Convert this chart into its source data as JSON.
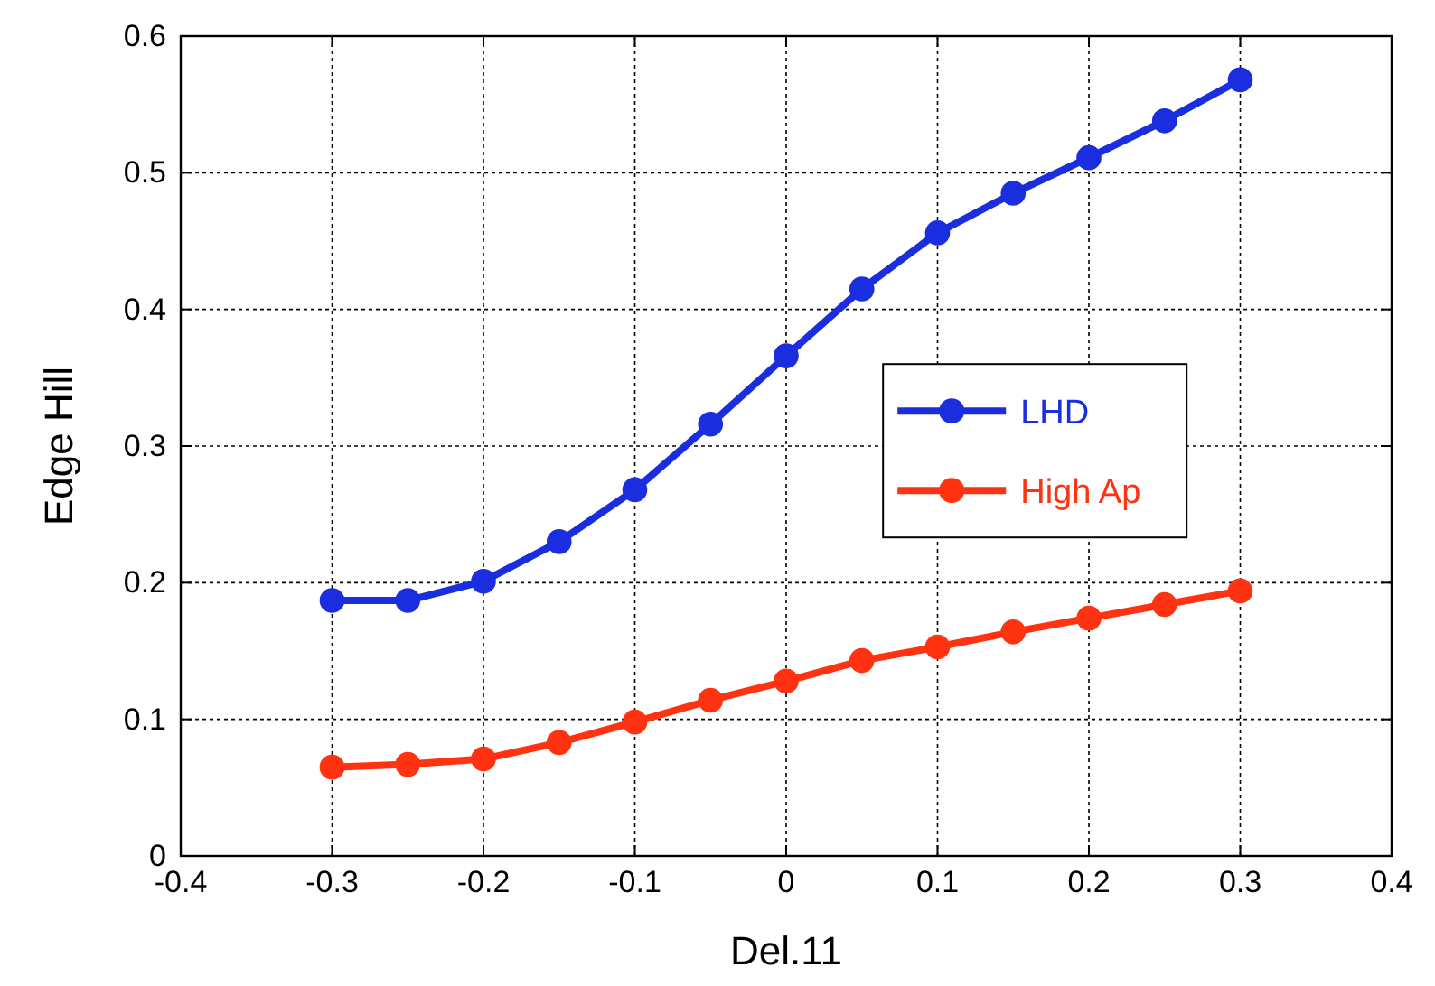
{
  "chart_data": {
    "type": "line",
    "xlabel": "Del.11",
    "ylabel": "Edge Hill",
    "x": [
      -0.3,
      -0.25,
      -0.2,
      -0.15,
      -0.1,
      -0.05,
      0,
      0.05,
      0.1,
      0.15,
      0.2,
      0.25,
      0.3
    ],
    "series": [
      {
        "name": "LHD",
        "color": "#1a2ee0",
        "values": [
          0.187,
          0.187,
          0.201,
          0.23,
          0.268,
          0.316,
          0.366,
          0.415,
          0.456,
          0.485,
          0.511,
          0.538,
          0.568
        ]
      },
      {
        "name": "High Ap",
        "color": "#ff3311",
        "values": [
          0.065,
          0.067,
          0.071,
          0.083,
          0.098,
          0.114,
          0.128,
          0.143,
          0.153,
          0.164,
          0.174,
          0.184,
          0.194
        ]
      }
    ],
    "xlim": [
      -0.4,
      0.4
    ],
    "xticks": [
      -0.4,
      -0.3,
      -0.2,
      -0.1,
      0,
      0.1,
      0.2,
      0.3,
      0.4
    ],
    "ylim": [
      0,
      0.6
    ],
    "yticks": [
      0,
      0.1,
      0.2,
      0.3,
      0.4,
      0.5,
      0.6
    ],
    "grid": true,
    "legend": "right",
    "marker": "circle",
    "line_style": "solid"
  }
}
